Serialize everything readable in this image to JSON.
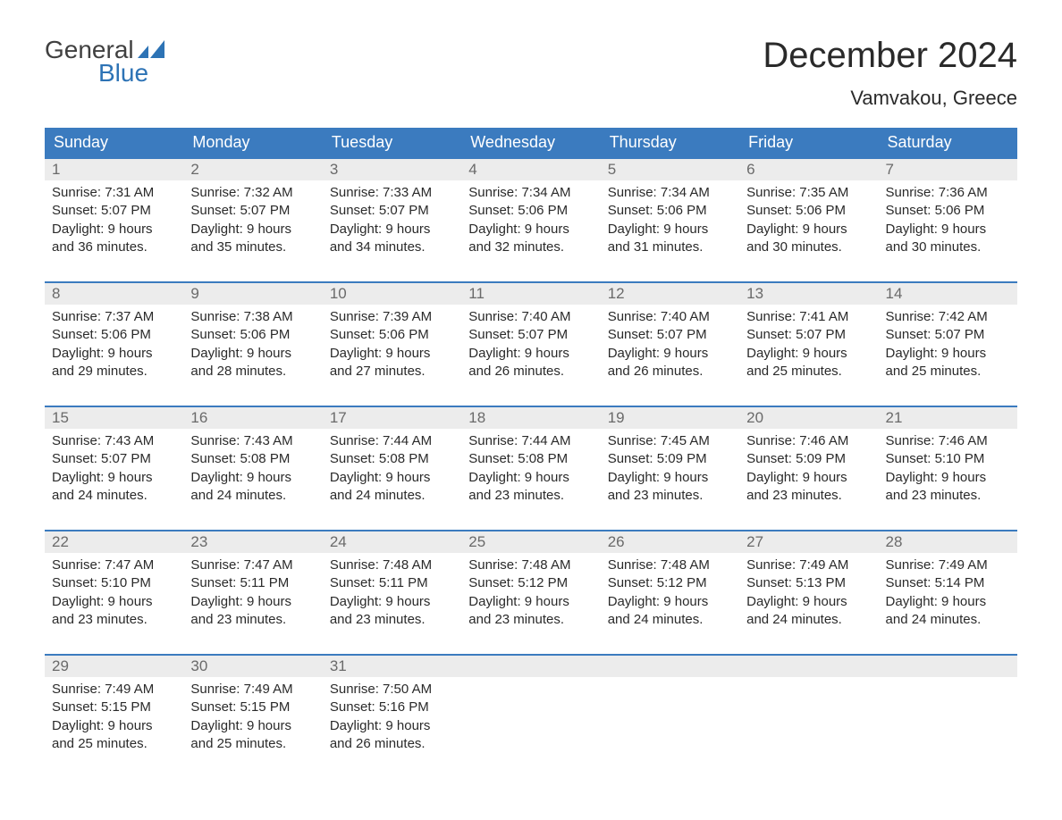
{
  "logo": {
    "text1": "General",
    "text2": "Blue",
    "icon_color": "#2d73b5"
  },
  "title": "December 2024",
  "location": "Vamvakou, Greece",
  "colors": {
    "header_bg": "#3b7bbf",
    "header_text": "#ffffff",
    "daynum_bg": "#ececec",
    "daynum_text": "#6a6a6a",
    "week_border": "#3b7bbf",
    "body_text": "#2a2a2a",
    "logo_gray": "#404040",
    "logo_blue": "#2d73b5"
  },
  "typography": {
    "title_fontsize": 40,
    "location_fontsize": 22,
    "dayhead_fontsize": 18,
    "daynum_fontsize": 17,
    "cell_fontsize": 15
  },
  "day_names": [
    "Sunday",
    "Monday",
    "Tuesday",
    "Wednesday",
    "Thursday",
    "Friday",
    "Saturday"
  ],
  "weeks": [
    [
      {
        "num": "1",
        "sunrise": "7:31 AM",
        "sunset": "5:07 PM",
        "daylight": "9 hours and 36 minutes."
      },
      {
        "num": "2",
        "sunrise": "7:32 AM",
        "sunset": "5:07 PM",
        "daylight": "9 hours and 35 minutes."
      },
      {
        "num": "3",
        "sunrise": "7:33 AM",
        "sunset": "5:07 PM",
        "daylight": "9 hours and 34 minutes."
      },
      {
        "num": "4",
        "sunrise": "7:34 AM",
        "sunset": "5:06 PM",
        "daylight": "9 hours and 32 minutes."
      },
      {
        "num": "5",
        "sunrise": "7:34 AM",
        "sunset": "5:06 PM",
        "daylight": "9 hours and 31 minutes."
      },
      {
        "num": "6",
        "sunrise": "7:35 AM",
        "sunset": "5:06 PM",
        "daylight": "9 hours and 30 minutes."
      },
      {
        "num": "7",
        "sunrise": "7:36 AM",
        "sunset": "5:06 PM",
        "daylight": "9 hours and 30 minutes."
      }
    ],
    [
      {
        "num": "8",
        "sunrise": "7:37 AM",
        "sunset": "5:06 PM",
        "daylight": "9 hours and 29 minutes."
      },
      {
        "num": "9",
        "sunrise": "7:38 AM",
        "sunset": "5:06 PM",
        "daylight": "9 hours and 28 minutes."
      },
      {
        "num": "10",
        "sunrise": "7:39 AM",
        "sunset": "5:06 PM",
        "daylight": "9 hours and 27 minutes."
      },
      {
        "num": "11",
        "sunrise": "7:40 AM",
        "sunset": "5:07 PM",
        "daylight": "9 hours and 26 minutes."
      },
      {
        "num": "12",
        "sunrise": "7:40 AM",
        "sunset": "5:07 PM",
        "daylight": "9 hours and 26 minutes."
      },
      {
        "num": "13",
        "sunrise": "7:41 AM",
        "sunset": "5:07 PM",
        "daylight": "9 hours and 25 minutes."
      },
      {
        "num": "14",
        "sunrise": "7:42 AM",
        "sunset": "5:07 PM",
        "daylight": "9 hours and 25 minutes."
      }
    ],
    [
      {
        "num": "15",
        "sunrise": "7:43 AM",
        "sunset": "5:07 PM",
        "daylight": "9 hours and 24 minutes."
      },
      {
        "num": "16",
        "sunrise": "7:43 AM",
        "sunset": "5:08 PM",
        "daylight": "9 hours and 24 minutes."
      },
      {
        "num": "17",
        "sunrise": "7:44 AM",
        "sunset": "5:08 PM",
        "daylight": "9 hours and 24 minutes."
      },
      {
        "num": "18",
        "sunrise": "7:44 AM",
        "sunset": "5:08 PM",
        "daylight": "9 hours and 23 minutes."
      },
      {
        "num": "19",
        "sunrise": "7:45 AM",
        "sunset": "5:09 PM",
        "daylight": "9 hours and 23 minutes."
      },
      {
        "num": "20",
        "sunrise": "7:46 AM",
        "sunset": "5:09 PM",
        "daylight": "9 hours and 23 minutes."
      },
      {
        "num": "21",
        "sunrise": "7:46 AM",
        "sunset": "5:10 PM",
        "daylight": "9 hours and 23 minutes."
      }
    ],
    [
      {
        "num": "22",
        "sunrise": "7:47 AM",
        "sunset": "5:10 PM",
        "daylight": "9 hours and 23 minutes."
      },
      {
        "num": "23",
        "sunrise": "7:47 AM",
        "sunset": "5:11 PM",
        "daylight": "9 hours and 23 minutes."
      },
      {
        "num": "24",
        "sunrise": "7:48 AM",
        "sunset": "5:11 PM",
        "daylight": "9 hours and 23 minutes."
      },
      {
        "num": "25",
        "sunrise": "7:48 AM",
        "sunset": "5:12 PM",
        "daylight": "9 hours and 23 minutes."
      },
      {
        "num": "26",
        "sunrise": "7:48 AM",
        "sunset": "5:12 PM",
        "daylight": "9 hours and 24 minutes."
      },
      {
        "num": "27",
        "sunrise": "7:49 AM",
        "sunset": "5:13 PM",
        "daylight": "9 hours and 24 minutes."
      },
      {
        "num": "28",
        "sunrise": "7:49 AM",
        "sunset": "5:14 PM",
        "daylight": "9 hours and 24 minutes."
      }
    ],
    [
      {
        "num": "29",
        "sunrise": "7:49 AM",
        "sunset": "5:15 PM",
        "daylight": "9 hours and 25 minutes."
      },
      {
        "num": "30",
        "sunrise": "7:49 AM",
        "sunset": "5:15 PM",
        "daylight": "9 hours and 25 minutes."
      },
      {
        "num": "31",
        "sunrise": "7:50 AM",
        "sunset": "5:16 PM",
        "daylight": "9 hours and 26 minutes."
      },
      null,
      null,
      null,
      null
    ]
  ],
  "labels": {
    "sunrise": "Sunrise:",
    "sunset": "Sunset:",
    "daylight": "Daylight:"
  }
}
